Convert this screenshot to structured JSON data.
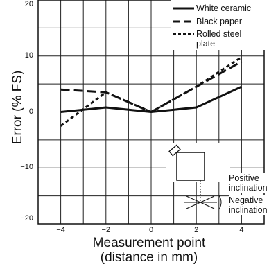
{
  "chart_data": {
    "type": "line",
    "xlabel": "Measurement point (distance in mm)",
    "xlabel_lines": [
      "Measurement point",
      "(distance in mm)"
    ],
    "ylabel": "Error (% FS)",
    "xlim": [
      -5,
      5
    ],
    "ylim": [
      -20,
      20
    ],
    "x_ticks": [
      -4,
      -2,
      0,
      2,
      4
    ],
    "y_ticks": [
      -20,
      -10,
      0,
      10,
      20
    ],
    "x_tick_labels": [
      "−4",
      "−2",
      "0",
      "2",
      "4"
    ],
    "y_tick_labels": [
      "−20",
      "−10",
      "0",
      "10",
      "20"
    ],
    "grid": true,
    "legend_position": "top-right",
    "series": [
      {
        "name": "White ceramic",
        "style": "solid",
        "x": [
          -4,
          -2,
          0,
          2,
          4
        ],
        "y": [
          0,
          0.8,
          0,
          0.8,
          4.5
        ]
      },
      {
        "name": "Black paper",
        "style": "dashed",
        "x": [
          -4,
          -2,
          0,
          2,
          4
        ],
        "y": [
          4,
          3.5,
          0,
          4.5,
          9
        ]
      },
      {
        "name": "Rolled steel plate",
        "style": "dotted",
        "x": [
          -4,
          -2,
          0,
          2,
          4
        ],
        "y": [
          -2.5,
          3.5,
          0,
          4.5,
          9.8
        ]
      }
    ],
    "legend_labels": [
      "White ceramic",
      "Black paper",
      "Rolled steel",
      "plate"
    ],
    "inset": {
      "positive_label": [
        "Positive",
        "inclination"
      ],
      "negative_label": [
        "Negative",
        "inclination"
      ]
    }
  }
}
